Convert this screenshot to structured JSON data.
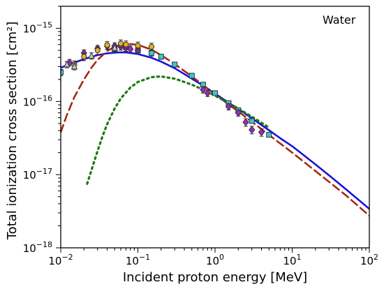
{
  "chart_data": {
    "type": "scatter",
    "annotation": "Water",
    "xlabel": "Incident proton energy [MeV]",
    "ylabel": "Total ionization cross section [cm²]",
    "x_scale": "log",
    "y_scale": "log",
    "xlim": [
      0.01,
      100
    ],
    "ylim": [
      1e-18,
      2e-15
    ],
    "grid": false,
    "x_ticks": [
      {
        "value": 0.01,
        "base": "10",
        "exp": "−2"
      },
      {
        "value": 0.1,
        "base": "10",
        "exp": "−1"
      },
      {
        "value": 1,
        "base": "10",
        "exp": "0"
      },
      {
        "value": 10,
        "base": "10",
        "exp": "1"
      },
      {
        "value": 100,
        "base": "10",
        "exp": "2"
      }
    ],
    "y_ticks": [
      {
        "value": 1e-18,
        "base": "10",
        "exp": "−18"
      },
      {
        "value": 1e-17,
        "base": "10",
        "exp": "−17"
      },
      {
        "value": 1e-16,
        "base": "10",
        "exp": "−16"
      },
      {
        "value": 1e-15,
        "base": "10",
        "exp": "−15"
      }
    ],
    "curves": [
      {
        "style": "solid",
        "color": "#1a10d8",
        "x": [
          0.01,
          0.015,
          0.02,
          0.03,
          0.04,
          0.05,
          0.06,
          0.07,
          0.08,
          0.1,
          0.15,
          0.2,
          0.3,
          0.5,
          0.7,
          1,
          1.5,
          2,
          3,
          5,
          7,
          10,
          20,
          30,
          50,
          100
        ],
        "y": [
          2.9e-16,
          3.4e-16,
          3.8e-16,
          4.3e-16,
          4.55e-16,
          4.65e-16,
          4.7e-16,
          4.68e-16,
          4.6e-16,
          4.45e-16,
          3.95e-16,
          3.5e-16,
          2.85e-16,
          2.05e-16,
          1.65e-16,
          1.28e-16,
          9.6e-17,
          7.9e-17,
          5.9e-17,
          4.05e-17,
          3.15e-17,
          2.45e-17,
          1.38e-17,
          9.8e-18,
          6.3e-18,
          3.4e-18
        ]
      },
      {
        "style": "dashed",
        "color": "#a52a12",
        "x": [
          0.01,
          0.012,
          0.015,
          0.02,
          0.025,
          0.03,
          0.04,
          0.05,
          0.06,
          0.08,
          0.1,
          0.15,
          0.2,
          0.3,
          0.5,
          0.7,
          1,
          2,
          3,
          5,
          10,
          20,
          50,
          100
        ],
        "y": [
          3.8e-17,
          6.5e-17,
          1.15e-16,
          2e-16,
          2.9e-16,
          3.7e-16,
          4.9e-16,
          5.6e-16,
          5.95e-16,
          6.1e-16,
          5.95e-16,
          5.1e-16,
          4.3e-16,
          3.25e-16,
          2.2e-16,
          1.68e-16,
          1.25e-16,
          7.3e-17,
          5.3e-17,
          3.5e-17,
          2e-17,
          1.12e-17,
          5.2e-18,
          2.75e-18
        ]
      },
      {
        "style": "dotted",
        "color": "#1e7a12",
        "x": [
          0.022,
          0.025,
          0.03,
          0.035,
          0.04,
          0.05,
          0.06,
          0.08,
          0.1,
          0.15,
          0.2,
          0.3,
          0.5,
          0.7,
          1,
          1.5,
          2,
          3,
          5
        ],
        "y": [
          7.5e-18,
          1.15e-17,
          2.1e-17,
          3.4e-17,
          4.9e-17,
          8e-17,
          1.1e-16,
          1.55e-16,
          1.85e-16,
          2.15e-16,
          2.2e-16,
          2.05e-16,
          1.7e-16,
          1.45e-16,
          1.2e-16,
          9.5e-17,
          8e-17,
          6.2e-17,
          4.4e-17
        ]
      }
    ],
    "series": [
      {
        "marker": "square",
        "color": "#3fc6d4",
        "x": [
          0.01,
          0.05,
          0.07,
          0.1,
          0.15,
          0.2,
          0.3,
          0.5,
          0.7,
          1,
          1.5,
          2,
          3,
          5
        ],
        "y": [
          2.5e-16,
          5.2e-16,
          5.5e-16,
          5e-16,
          4.6e-16,
          4.1e-16,
          3.2e-16,
          2.25e-16,
          1.7e-16,
          1.3e-16,
          9.5e-17,
          7.6e-17,
          5.4e-17,
          3.5e-17
        ],
        "err": [
          0.1,
          0.1,
          0.12,
          0.1,
          0.1,
          0.08,
          0.07,
          0.06,
          0.06,
          0.06,
          0.06,
          0.06,
          0.06,
          0.06
        ]
      },
      {
        "marker": "diamond",
        "color": "#9a28c8",
        "x": [
          0.013,
          0.02,
          0.03,
          0.04,
          0.05,
          0.06,
          0.07,
          0.08,
          0.1,
          0.7,
          0.8,
          1.5,
          2,
          2.5,
          3,
          4
        ],
        "y": [
          3.4e-16,
          4.6e-16,
          5.3e-16,
          5.7e-16,
          5.75e-16,
          5.6e-16,
          5.4e-16,
          5.2e-16,
          5e-16,
          1.45e-16,
          1.3e-16,
          8.5e-17,
          7e-17,
          5.2e-17,
          4.1e-17,
          3.8e-17
        ],
        "err": [
          0.1,
          0.1,
          0.1,
          0.1,
          0.1,
          0.1,
          0.1,
          0.1,
          0.1,
          0.1,
          0.1,
          0.1,
          0.1,
          0.12,
          0.12,
          0.12
        ]
      },
      {
        "marker": "circle",
        "color": "#e8b020",
        "x": [
          0.015,
          0.02,
          0.03,
          0.04,
          0.06,
          0.07,
          0.1,
          0.15
        ],
        "y": [
          3.2e-16,
          4.1e-16,
          5e-16,
          5.9e-16,
          6.2e-16,
          6e-16,
          5.8e-16,
          5.6e-16
        ],
        "err": [
          0.12,
          0.12,
          0.12,
          0.12,
          0.12,
          0.12,
          0.12,
          0.12
        ]
      },
      {
        "marker": "triangle",
        "color": "#c8c8c8",
        "x": [
          0.012,
          0.015,
          0.025,
          0.05
        ],
        "y": [
          3.2e-16,
          3e-16,
          4.2e-16,
          5.4e-16
        ],
        "err": [
          0.1,
          0.1,
          0.1,
          0.1
        ]
      }
    ]
  }
}
